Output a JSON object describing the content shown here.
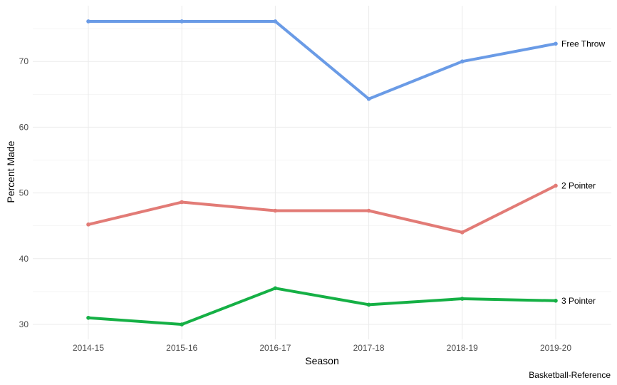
{
  "chart_data": {
    "type": "line",
    "xlabel": "Season",
    "ylabel": "Percent Made",
    "caption": "Basketball-Reference",
    "categories": [
      "2014-15",
      "2015-16",
      "2016-17",
      "2017-18",
      "2018-19",
      "2019-20"
    ],
    "yticks": [
      30,
      40,
      50,
      60,
      70
    ],
    "ylim": [
      28,
      78
    ],
    "grid": true,
    "legend": "direct labels at line ends",
    "series": [
      {
        "name": "Free Throw",
        "color": "#6a9be6",
        "values": [
          76.1,
          76.1,
          76.1,
          64.3,
          70.0,
          72.7
        ]
      },
      {
        "name": "2 Pointer",
        "color": "#e27b76",
        "values": [
          45.2,
          48.6,
          47.3,
          47.3,
          44.0,
          51.1
        ]
      },
      {
        "name": "3 Pointer",
        "color": "#15b045",
        "values": [
          31.0,
          30.0,
          35.5,
          33.0,
          33.9,
          33.6
        ]
      }
    ]
  }
}
